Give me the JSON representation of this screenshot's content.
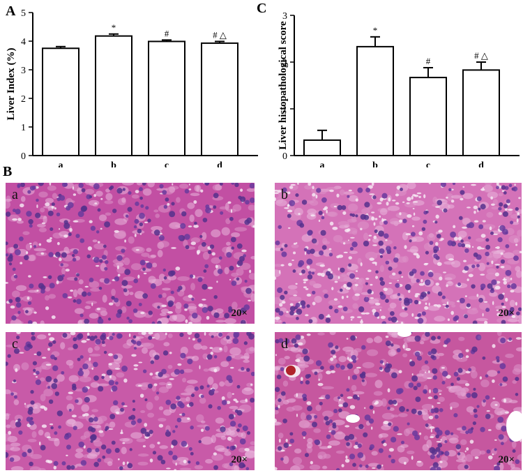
{
  "panels": {
    "A": "A",
    "B": "B",
    "C": "C"
  },
  "chart_data": [
    {
      "type": "bar",
      "panel": "A",
      "ylabel": "Liver Index (%)",
      "categories": [
        "a",
        "b",
        "c",
        "d"
      ],
      "values": [
        3.75,
        4.18,
        3.99,
        3.93
      ],
      "errors": [
        0.06,
        0.07,
        0.05,
        0.06
      ],
      "annotations": [
        "",
        "*",
        "#",
        "# △"
      ],
      "ylim": [
        0,
        5
      ],
      "yticks": [
        "0",
        "1",
        "2",
        "3",
        "4",
        "5"
      ]
    },
    {
      "type": "bar",
      "panel": "C",
      "ylabel": "Liver histopathological score",
      "categories": [
        "a",
        "b",
        "c",
        "d"
      ],
      "values": [
        0.33,
        2.33,
        1.67,
        1.83
      ],
      "errors": [
        0.21,
        0.21,
        0.21,
        0.17
      ],
      "annotations": [
        "",
        "*",
        "#",
        "# △"
      ],
      "ylim": [
        0,
        3
      ],
      "yticks": [
        "0",
        "1",
        "2",
        "3"
      ]
    }
  ],
  "micrographs": [
    {
      "letter": "a",
      "magnification": "20×",
      "stain_color": "#c24fa3"
    },
    {
      "letter": "b",
      "magnification": "20×",
      "stain_color": "#d472b8"
    },
    {
      "letter": "c",
      "magnification": "20×",
      "stain_color": "#c85aa8"
    },
    {
      "letter": "d",
      "magnification": "20×",
      "stain_color": "#c6579f"
    }
  ]
}
